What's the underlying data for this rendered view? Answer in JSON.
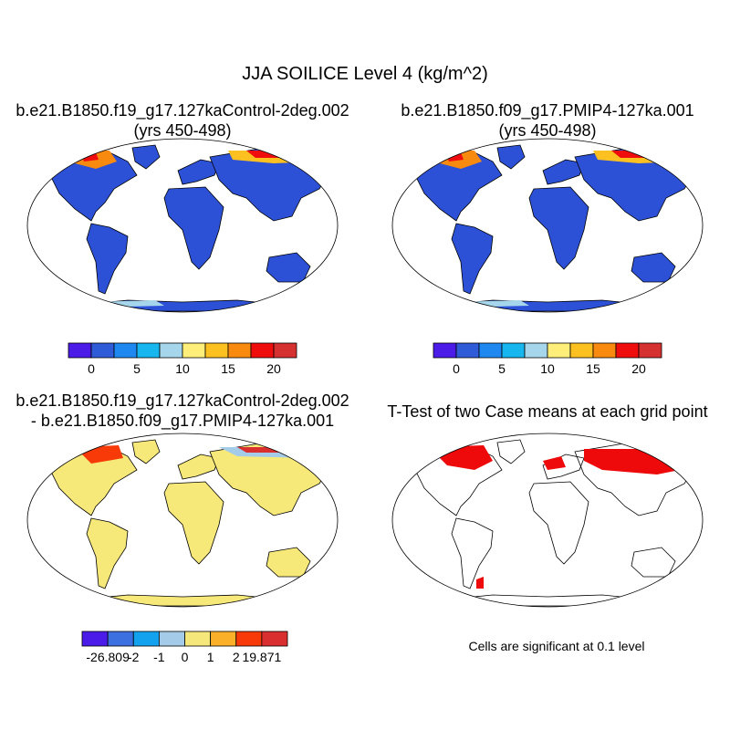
{
  "title": "JJA SOILICE Level 4 (kg/m^2)",
  "panels": [
    {
      "id": "case1",
      "title_line1": "b.e21.B1850.f19_g17.127kaControl-2deg.002",
      "title_line2": "(yrs 450-498)"
    },
    {
      "id": "case2",
      "title_line1": "b.e21.B1850.f09_g17.PMIP4-127ka.001",
      "title_line2": "(yrs 450-498)"
    },
    {
      "id": "diff",
      "title_line1": "b.e21.B1850.f19_g17.127kaControl-2deg.002",
      "title_line2": "- b.e21.B1850.f09_g17.PMIP4-127ka.001"
    },
    {
      "id": "ttest",
      "title_line1": "T-Test of two Case means at each grid point",
      "title_line2": ""
    }
  ],
  "colorbar_main": {
    "colors": [
      "#4b1be8",
      "#2f5bd9",
      "#1e88f0",
      "#17b6ee",
      "#a6d6ec",
      "#ffee7a",
      "#fcc020",
      "#f98a10",
      "#ef0d0d",
      "#d63131"
    ],
    "labels": [
      "0",
      "5",
      "10",
      "15",
      "20"
    ]
  },
  "colorbar_diff": {
    "colors": [
      "#4b1be8",
      "#3c6fe0",
      "#13a3ee",
      "#a4cce8",
      "#f5e77a",
      "#fbb02a",
      "#f73a08",
      "#d92f2f"
    ],
    "labels": [
      "-26.809",
      "-2",
      "-1",
      "0",
      "1",
      "2",
      "19.871"
    ]
  },
  "significance_note": "Cells are significant at 0.1 level",
  "colors": {
    "land_main": "#2d51d6",
    "land_diff": "#f6e879",
    "significant": "#ee0a0a"
  }
}
